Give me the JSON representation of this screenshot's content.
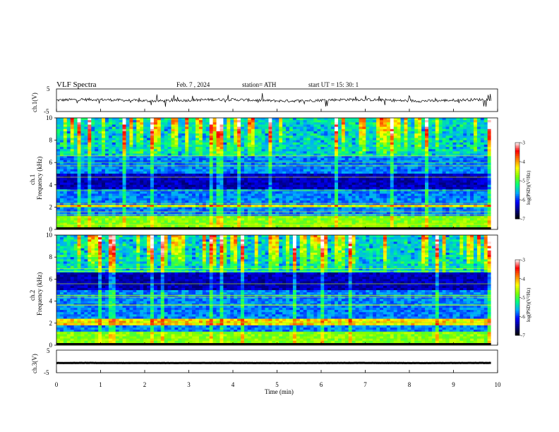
{
  "header": {
    "title": "VLF  Spectra",
    "date": "Feb. 7  , 2024",
    "station": "station= ATH",
    "start": "start  UT  =    15: 30: 1"
  },
  "chart_data": [
    {
      "type": "line",
      "id": "ch1-waveform",
      "ylabel": "ch.1(V)",
      "ylim": [
        -5,
        5
      ],
      "y_ticks": [
        "5",
        "-5"
      ],
      "xlim": [
        0,
        10
      ],
      "mean": 0.0,
      "color": "#000000"
    },
    {
      "type": "heatmap",
      "id": "ch1-spectrogram",
      "ylabel": "ch.1\nFrequency  (kHz)",
      "ylabel_lines": [
        "ch.1",
        "Frequency  (kHz)"
      ],
      "ylim": [
        0,
        10
      ],
      "y_ticks": [
        "0",
        "2",
        "4",
        "6",
        "8",
        "10"
      ],
      "xlim": [
        0,
        10
      ],
      "colorbar_label": "log(PSD)(V²/Hz)",
      "colorbar_range": [
        -7,
        -3
      ],
      "colorbar_ticks": [
        "-3",
        "-4",
        "-5",
        "-6",
        "-7"
      ],
      "bright_band_khz": [
        1.9,
        2.3
      ],
      "dark_band_khz": [
        3.6,
        5.0
      ]
    },
    {
      "type": "heatmap",
      "id": "ch2-spectrogram",
      "ylabel": "ch.2\nFrequency  (kHz)",
      "ylabel_lines": [
        "ch.2",
        "Frequency  (kHz)"
      ],
      "ylim": [
        0,
        10
      ],
      "y_ticks": [
        "0",
        "2",
        "4",
        "6",
        "8",
        "10"
      ],
      "xlim": [
        0,
        10
      ],
      "colorbar_label": "log(PSD)(V²/Hz)",
      "colorbar_range": [
        -7,
        -3
      ],
      "colorbar_ticks": [
        "-3",
        "-4",
        "-5",
        "-6",
        "-7"
      ],
      "bright_band_khz": [
        1.8,
        2.4
      ],
      "dark_band_khz": [
        5.0,
        6.6
      ]
    },
    {
      "type": "line",
      "id": "ch3-waveform",
      "ylabel": "ch.3(V)",
      "ylim": [
        -5,
        5
      ],
      "y_ticks": [
        "5",
        "-5"
      ],
      "xlim": [
        0,
        10
      ],
      "mean": -0.7,
      "color": "#000000"
    }
  ],
  "x_axis": {
    "label": "Time  (min)",
    "ticks": [
      "0",
      "1",
      "2",
      "3",
      "4",
      "5",
      "6",
      "7",
      "8",
      "9",
      "10"
    ],
    "xlim": [
      0,
      10
    ]
  },
  "colormap": [
    "#000000",
    "#000080",
    "#0000ff",
    "#00aaff",
    "#00ff80",
    "#80ff00",
    "#ffff00",
    "#ff8000",
    "#ff0000",
    "#ffffff"
  ]
}
